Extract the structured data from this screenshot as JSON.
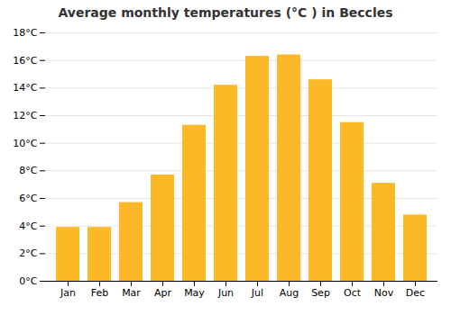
{
  "chart_data": {
    "type": "bar",
    "title": "Average monthly temperatures (°C ) in Beccles",
    "categories": [
      "Jan",
      "Feb",
      "Mar",
      "Apr",
      "May",
      "Jun",
      "Jul",
      "Aug",
      "Sep",
      "Oct",
      "Nov",
      "Dec"
    ],
    "values": [
      3.9,
      3.9,
      5.7,
      7.7,
      11.3,
      14.2,
      16.3,
      16.4,
      14.6,
      11.5,
      7.1,
      4.8
    ],
    "color": "#FDB827",
    "ylim": [
      0,
      18
    ],
    "yticks": [
      {
        "value": 0,
        "label": "0°C"
      },
      {
        "value": 2,
        "label": "2°C"
      },
      {
        "value": 4,
        "label": "4°C"
      },
      {
        "value": 6,
        "label": "6°C"
      },
      {
        "value": 8,
        "label": "8°C"
      },
      {
        "value": 10,
        "label": "10°C"
      },
      {
        "value": 12,
        "label": "12°C"
      },
      {
        "value": 14,
        "label": "14°C"
      },
      {
        "value": 16,
        "label": "16°C"
      },
      {
        "value": 18,
        "label": "18°C"
      }
    ],
    "grid": true
  }
}
